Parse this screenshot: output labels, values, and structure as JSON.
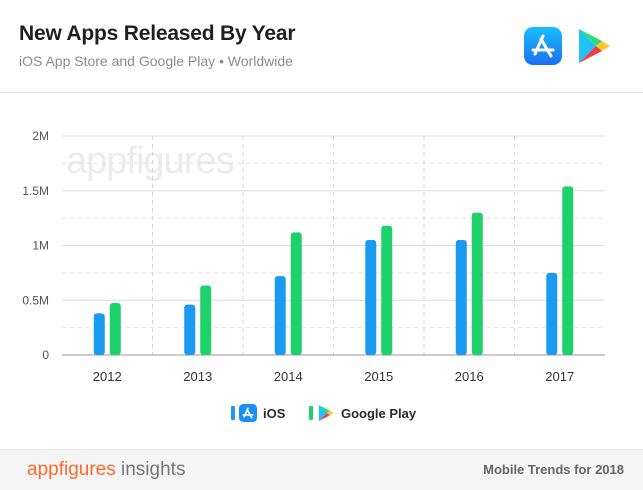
{
  "header": {
    "title": "New Apps Released By Year",
    "subtitle": "iOS App Store and Google Play • Worldwide",
    "icons": [
      "app-store-icon",
      "google-play-icon"
    ]
  },
  "watermark": "appfigures",
  "colors": {
    "ios": "#1a9af0",
    "google_play": "#1ed16a",
    "brand_orange": "#ff6a2b"
  },
  "chart_data": {
    "type": "bar",
    "categories": [
      "2012",
      "2013",
      "2014",
      "2015",
      "2016",
      "2017"
    ],
    "series": [
      {
        "name": "iOS",
        "values": [
          380000,
          460000,
          720000,
          1050000,
          1050000,
          750000
        ]
      },
      {
        "name": "Google Play",
        "values": [
          475000,
          635000,
          1120000,
          1180000,
          1300000,
          1540000
        ]
      }
    ],
    "ylim": [
      0,
      2000000
    ],
    "yticks": [
      0,
      500000,
      1000000,
      1500000,
      2000000
    ],
    "ytick_labels": [
      "0",
      "0.5M",
      "1M",
      "1.5M",
      "2M"
    ],
    "grid": true,
    "legend_position": "bottom-center"
  },
  "legend": {
    "ios_label": "iOS",
    "google_play_label": "Google Play"
  },
  "footer": {
    "brand_primary": "appfigures",
    "brand_secondary": "insights",
    "right_text": "Mobile Trends for 2018"
  }
}
